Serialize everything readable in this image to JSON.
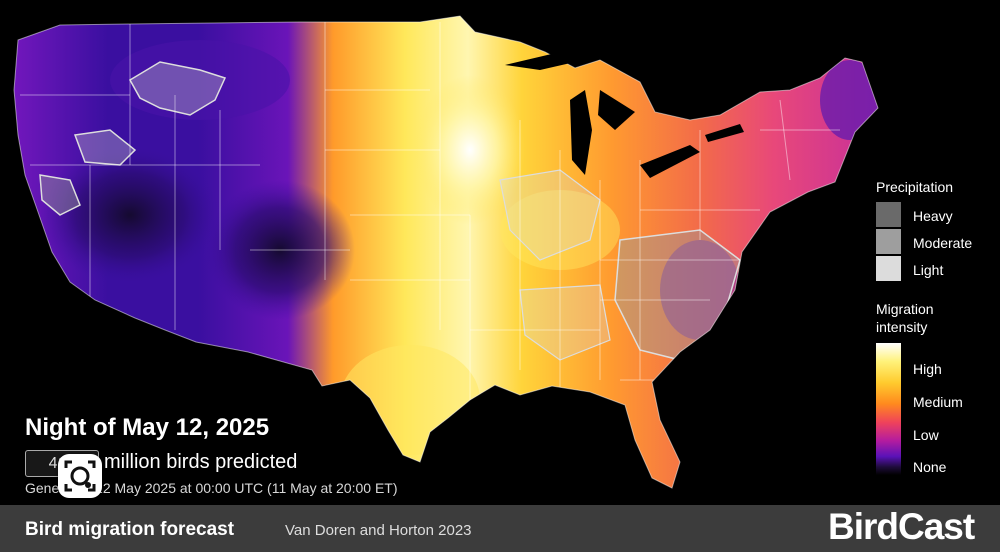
{
  "legend": {
    "precip_title": "Precipitation",
    "precip_items": [
      {
        "label": "Heavy",
        "color": "#6a6a6a"
      },
      {
        "label": "Moderate",
        "color": "#9e9e9e"
      },
      {
        "label": "Light",
        "color": "#dcdcdc"
      }
    ],
    "intensity_title_1": "Migration",
    "intensity_title_2": "intensity",
    "intensity_labels": [
      "High",
      "Medium",
      "Low",
      "None"
    ]
  },
  "overlay": {
    "night_title": "Night of May 12, 2025",
    "bird_count": "410",
    "count_label": "million birds predicted",
    "generated": "Generated 12 May 2025 at 00:00 UTC (11 May at 20:00 ET)"
  },
  "footer": {
    "title": "Bird migration forecast",
    "credit": "Van Doren and Horton 2023",
    "brand": "BirdCast"
  },
  "colors": {
    "none": "#000000",
    "low": "#3a0fa0",
    "medium": "#ff8a1e",
    "high": "#ffffff"
  }
}
